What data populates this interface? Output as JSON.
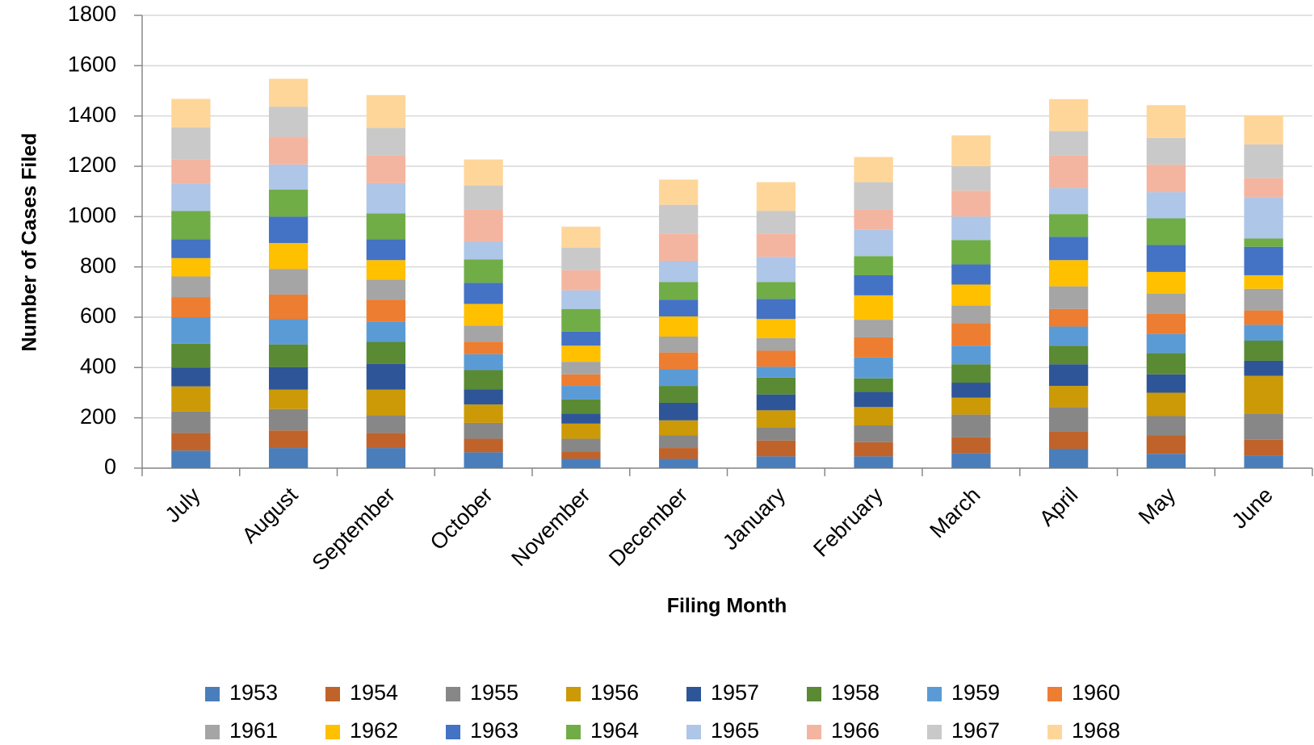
{
  "chart_data": {
    "type": "stacked_bar",
    "x_label": "Filing Month",
    "y_label": "Number of Cases Filed",
    "categories": [
      "July",
      "August",
      "September",
      "October",
      "November",
      "December",
      "January",
      "February",
      "March",
      "April",
      "May",
      "June"
    ],
    "ylim": [
      0,
      1800
    ],
    "yticks": [
      0,
      200,
      400,
      600,
      800,
      1000,
      1200,
      1400,
      1600,
      1800
    ],
    "grid": true,
    "legend": "bottom",
    "series": [
      {
        "name": "1953",
        "color": "#4a7ebb",
        "values": [
          70,
          80,
          80,
          63,
          37,
          37,
          47,
          47,
          60,
          77,
          57,
          50
        ]
      },
      {
        "name": "1954",
        "color": "#c0632b",
        "values": [
          70,
          70,
          60,
          54,
          30,
          43,
          63,
          56,
          63,
          70,
          73,
          63
        ]
      },
      {
        "name": "1955",
        "color": "#878787",
        "values": [
          85,
          85,
          70,
          63,
          50,
          50,
          53,
          67,
          90,
          96,
          77,
          104
        ]
      },
      {
        "name": "1956",
        "color": "#cc9a06",
        "values": [
          100,
          77,
          102,
          73,
          60,
          60,
          67,
          73,
          67,
          84,
          93,
          150
        ]
      },
      {
        "name": "1957",
        "color": "#2e5597",
        "values": [
          75,
          90,
          103,
          60,
          40,
          70,
          63,
          60,
          60,
          86,
          73,
          60
        ]
      },
      {
        "name": "1958",
        "color": "#5a8a33",
        "values": [
          95,
          90,
          87,
          77,
          56,
          67,
          67,
          54,
          73,
          74,
          84,
          80
        ]
      },
      {
        "name": "1959",
        "color": "#5b9bd5",
        "values": [
          105,
          100,
          81,
          63,
          54,
          66,
          43,
          83,
          74,
          76,
          76,
          63
        ]
      },
      {
        "name": "1960",
        "color": "#ed7d31",
        "values": [
          80,
          98,
          87,
          50,
          46,
          67,
          64,
          80,
          90,
          70,
          80,
          57
        ]
      },
      {
        "name": "1961",
        "color": "#a5a5a5",
        "values": [
          82,
          102,
          80,
          64,
          50,
          63,
          50,
          70,
          70,
          90,
          80,
          86
        ]
      },
      {
        "name": "1962",
        "color": "#ffc000",
        "values": [
          73,
          103,
          77,
          86,
          64,
          80,
          76,
          97,
          83,
          104,
          87,
          54
        ]
      },
      {
        "name": "1963",
        "color": "#4472c4",
        "values": [
          75,
          105,
          83,
          84,
          56,
          67,
          80,
          80,
          80,
          93,
          107,
          113
        ]
      },
      {
        "name": "1964",
        "color": "#70ad47",
        "values": [
          112,
          107,
          103,
          93,
          90,
          70,
          67,
          76,
          97,
          90,
          106,
          33
        ]
      },
      {
        "name": "1965",
        "color": "#aec6e8",
        "values": [
          110,
          100,
          120,
          70,
          74,
          83,
          100,
          104,
          93,
          103,
          104,
          164
        ]
      },
      {
        "name": "1966",
        "color": "#f4b5a0",
        "values": [
          96,
          110,
          110,
          127,
          80,
          110,
          93,
          80,
          103,
          130,
          110,
          76
        ]
      },
      {
        "name": "1967",
        "color": "#c9c9c9",
        "values": [
          127,
          120,
          110,
          96,
          90,
          114,
          90,
          110,
          97,
          97,
          106,
          134
        ]
      },
      {
        "name": "1968",
        "color": "#ffd699",
        "values": [
          113,
          111,
          130,
          104,
          83,
          100,
          114,
          100,
          123,
          127,
          130,
          116
        ]
      }
    ]
  }
}
